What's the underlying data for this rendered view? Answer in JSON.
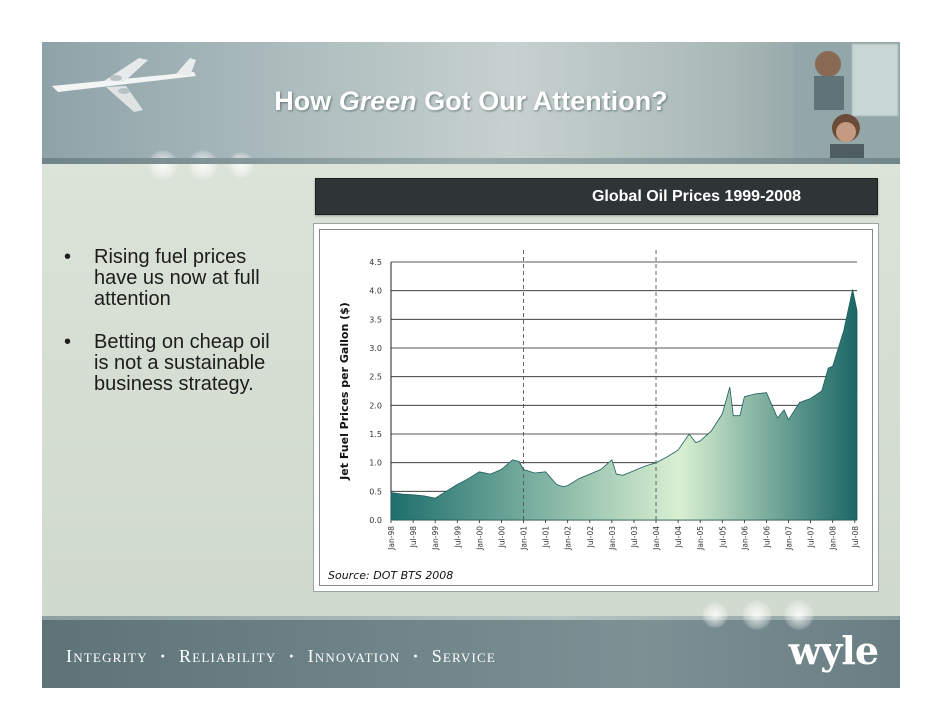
{
  "slide": {
    "title_before": "How ",
    "title_emphasis": "Green",
    "title_after": " Got Our Attention?",
    "bullets": [
      "Rising fuel prices have us now at full attention",
      "Betting on cheap oil is not a sustainable business strategy."
    ],
    "bullet_marker": "•"
  },
  "footer": {
    "tagline": [
      "Integrity",
      "Reliability",
      "Innovation",
      "Service"
    ],
    "separator": "·",
    "brand": "wyle"
  },
  "chart_data": {
    "type": "area",
    "header": "Global Oil Prices 1999-2008",
    "ylabel": "Jet Fuel Prices per Gallon ($)",
    "source": "Source: DOT BTS 2008",
    "ylim": [
      0,
      4.5
    ],
    "yticks": [
      "0.0",
      "0.5",
      "1.0",
      "1.5",
      "2.0",
      "2.5",
      "3.0",
      "3.5",
      "4.0",
      "4.5"
    ],
    "xticks": [
      "Jan-98",
      "Jul-98",
      "Jan-99",
      "Jul-99",
      "Jan-00",
      "Jul-00",
      "Jan-01",
      "Jul-01",
      "Jan-02",
      "Jul-02",
      "Jan-03",
      "Jul-03",
      "Jan-04",
      "Jul-04",
      "Jan-05",
      "Jul-05",
      "Jan-06",
      "Jul-06",
      "Jan-07",
      "Jul-07",
      "Jan-08",
      "Jul-08"
    ],
    "dashed_markers": [
      "Jan-01",
      "Jan-04"
    ],
    "grid": true,
    "fill_colors": [
      "#1e6f6d",
      "#d9f0d2",
      "#1a6766"
    ],
    "x": [
      1998.0,
      1998.25,
      1998.5,
      1998.75,
      1999.0,
      1999.25,
      1999.5,
      1999.75,
      2000.0,
      2000.25,
      2000.5,
      2000.75,
      2000.9,
      2001.0,
      2001.25,
      2001.5,
      2001.75,
      2001.9,
      2002.0,
      2002.25,
      2002.5,
      2002.75,
      2003.0,
      2003.1,
      2003.25,
      2003.5,
      2003.75,
      2004.0,
      2004.25,
      2004.5,
      2004.75,
      2004.9,
      2005.0,
      2005.25,
      2005.5,
      2005.67,
      2005.75,
      2005.9,
      2006.0,
      2006.25,
      2006.5,
      2006.75,
      2006.9,
      2007.0,
      2007.25,
      2007.5,
      2007.75,
      2007.9,
      2008.0,
      2008.25,
      2008.45,
      2008.55
    ],
    "values": [
      0.48,
      0.45,
      0.44,
      0.42,
      0.38,
      0.5,
      0.62,
      0.72,
      0.84,
      0.8,
      0.88,
      1.05,
      1.02,
      0.88,
      0.82,
      0.84,
      0.62,
      0.58,
      0.6,
      0.72,
      0.8,
      0.88,
      1.05,
      0.8,
      0.78,
      0.86,
      0.94,
      1.0,
      1.1,
      1.22,
      1.5,
      1.35,
      1.38,
      1.55,
      1.85,
      2.32,
      1.82,
      1.82,
      2.15,
      2.2,
      2.22,
      1.78,
      1.92,
      1.75,
      2.05,
      2.12,
      2.25,
      2.65,
      2.68,
      3.3,
      4.02,
      3.65
    ]
  }
}
